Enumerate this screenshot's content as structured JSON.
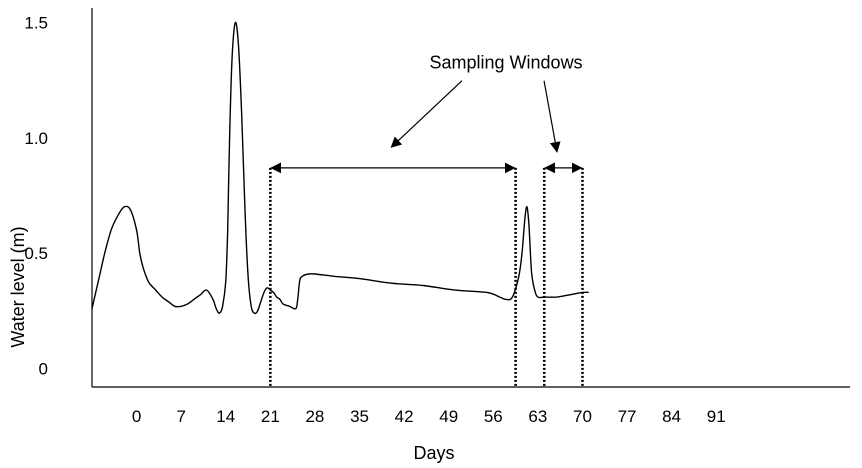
{
  "chart_data": {
    "type": "line",
    "title": "",
    "xlabel": "Days",
    "ylabel": "Water level (m)",
    "xlim": [
      -7,
      112
    ],
    "ylim": [
      -0.08,
      1.52
    ],
    "x_ticks": [
      0,
      7,
      14,
      21,
      28,
      35,
      42,
      49,
      56,
      63,
      70,
      77,
      84,
      91
    ],
    "x_tick_labels": [
      "0",
      "7",
      "14",
      "21",
      "28",
      "35",
      "42",
      "49",
      "56",
      "63",
      "70",
      "77",
      "84",
      "91"
    ],
    "y_ticks": [
      0,
      0.5,
      1.0,
      1.5
    ],
    "y_tick_labels": [
      "0",
      "0.5",
      "1.0",
      "1.5"
    ],
    "grid": false,
    "series": [
      {
        "color": "#000000",
        "x": [
          -7,
          -6,
          -5,
          -4,
          -3,
          -2,
          -1,
          0,
          0.5,
          1,
          1.5,
          2,
          3,
          4,
          5,
          6,
          7,
          8,
          9,
          10,
          11,
          12,
          12.5,
          13,
          13.5,
          14,
          14.3,
          14.6,
          15,
          15.5,
          16,
          16.5,
          17,
          17.5,
          18,
          18.5,
          19,
          19.5,
          20,
          20.5,
          21,
          21.5,
          22,
          22.5,
          23,
          24,
          25,
          25.3,
          25.6,
          26,
          27,
          28,
          31,
          35,
          40,
          45,
          50,
          55,
          57,
          58,
          59,
          60,
          60.5,
          61,
          61.3,
          61.6,
          62,
          62.5,
          63,
          64,
          66,
          68,
          70,
          71
        ],
        "y": [
          0.26,
          0.38,
          0.5,
          0.6,
          0.66,
          0.7,
          0.69,
          0.6,
          0.5,
          0.44,
          0.4,
          0.37,
          0.34,
          0.31,
          0.29,
          0.27,
          0.27,
          0.28,
          0.3,
          0.32,
          0.34,
          0.3,
          0.26,
          0.24,
          0.27,
          0.38,
          0.6,
          1.0,
          1.35,
          1.5,
          1.4,
          1.1,
          0.7,
          0.4,
          0.27,
          0.24,
          0.25,
          0.29,
          0.33,
          0.35,
          0.34,
          0.33,
          0.31,
          0.3,
          0.28,
          0.27,
          0.26,
          0.3,
          0.38,
          0.4,
          0.41,
          0.41,
          0.4,
          0.39,
          0.37,
          0.36,
          0.34,
          0.33,
          0.31,
          0.3,
          0.31,
          0.4,
          0.5,
          0.66,
          0.7,
          0.62,
          0.42,
          0.34,
          0.31,
          0.31,
          0.31,
          0.32,
          0.33,
          0.33
        ]
      }
    ],
    "sampling_windows": [
      {
        "start": 21,
        "end": 59.5
      },
      {
        "start": 64,
        "end": 70
      }
    ],
    "window_top": 0.87,
    "annotation": {
      "text": "Sampling Windows",
      "x": 58,
      "y": 1.3,
      "arrow_targets": [
        {
          "x": 40,
          "y": 0.96
        },
        {
          "x": 66,
          "y": 0.94
        }
      ]
    }
  }
}
